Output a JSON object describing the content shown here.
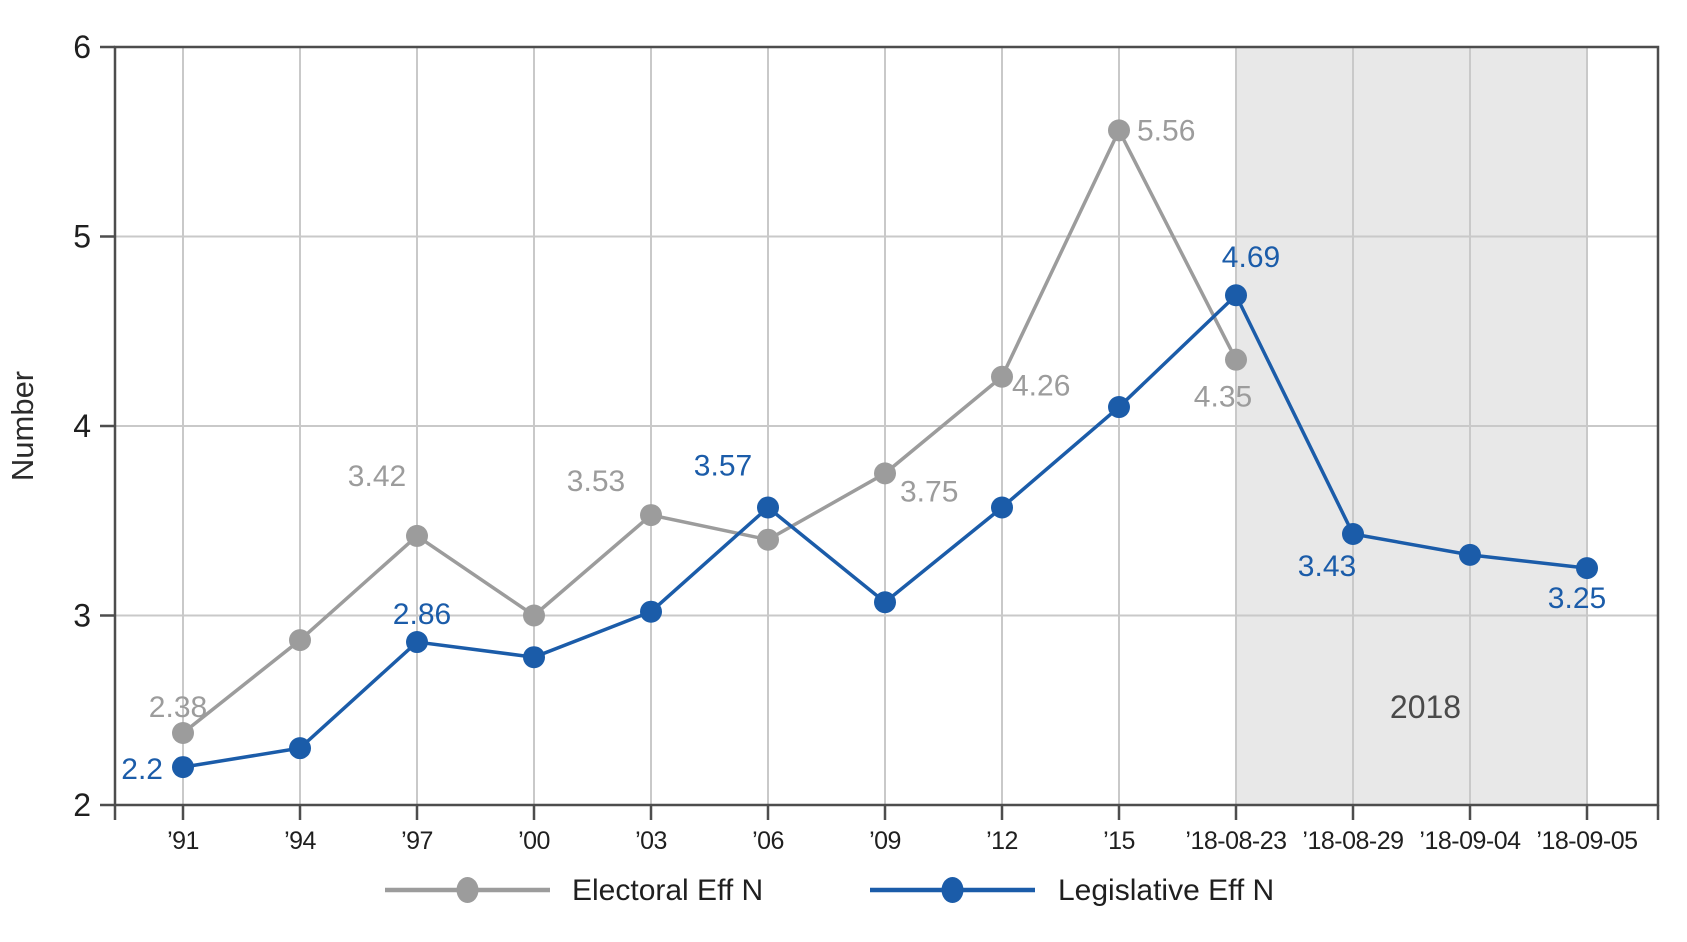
{
  "chart_data": {
    "type": "line",
    "title": "",
    "xlabel": "",
    "ylabel": "Number",
    "ylim": [
      2,
      6
    ],
    "yticks": [
      "2",
      "3",
      "4",
      "5",
      "6"
    ],
    "grid": true,
    "legend_position": "bottom",
    "categories": [
      "’91",
      "’94",
      "’97",
      "’00",
      "’03",
      "’06",
      "’09",
      "’12",
      "’15",
      "’18-08-23",
      "’18-08-29",
      "’18-09-04",
      "’18-09-05"
    ],
    "series": [
      {
        "name": "Electoral Eff N",
        "color": "#9c9c9c",
        "values": [
          2.38,
          2.87,
          3.42,
          3.0,
          3.53,
          3.4,
          3.75,
          4.26,
          5.56,
          4.35,
          null,
          null,
          null
        ],
        "point_labels": [
          "2.38",
          null,
          "3.42",
          null,
          "3.53",
          null,
          "3.75",
          "4.26",
          "5.56",
          "4.35",
          null,
          null,
          null
        ]
      },
      {
        "name": "Legislative Eff N",
        "color": "#1b5ca9",
        "values": [
          2.2,
          2.3,
          2.86,
          2.78,
          3.02,
          3.57,
          3.07,
          3.57,
          4.1,
          4.69,
          3.43,
          3.32,
          3.25
        ],
        "point_labels": [
          "2.2",
          null,
          "2.86",
          null,
          null,
          "3.57",
          null,
          null,
          null,
          "4.69",
          "3.43",
          null,
          "3.25"
        ]
      }
    ],
    "shaded_region": {
      "from_category": "’18-08-23",
      "to_category": "’18-09-05",
      "label": "2018",
      "fill": "#e8e8e8"
    },
    "colors": {
      "axis": "#4d4d4d",
      "grid": "#c9c9c9",
      "tick_text": "#1f1f1f",
      "annotation_text": "#4a4a4a",
      "background": "#ffffff"
    }
  }
}
